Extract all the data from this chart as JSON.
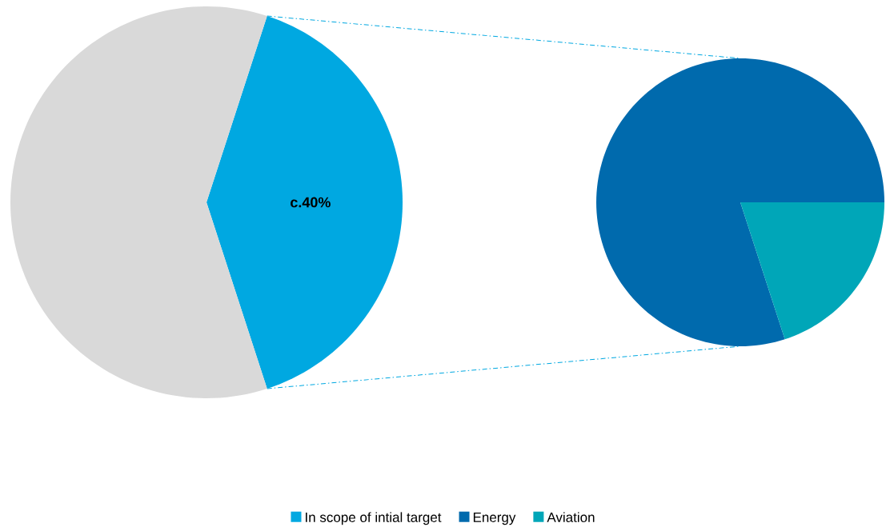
{
  "chart_data": [
    {
      "type": "pie",
      "categories": [
        "In scope of intial target",
        null
      ],
      "values": [
        40,
        60
      ],
      "colors": [
        "#00a8e1",
        "#d9d9d9"
      ],
      "value_labels": [
        "c.40%",
        null
      ],
      "legend": "bottom"
    },
    {
      "type": "pie",
      "categories": [
        "Energy",
        "Aviation"
      ],
      "values": [
        80,
        20
      ],
      "colors": [
        "#006aad",
        "#00a6b8"
      ],
      "legend": "bottom"
    }
  ]
}
